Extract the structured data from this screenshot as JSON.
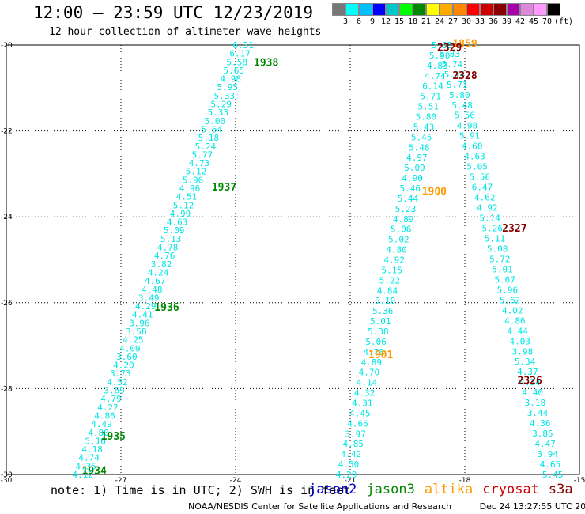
{
  "title": "12:00 – 23:59 UTC 12/23/2019",
  "subtitle": "12 hour collection of altimeter wave heights",
  "scale": {
    "unit": "(ft)",
    "colors": [
      "#777777",
      "#00ffff",
      "#00bfff",
      "#0000ff",
      "#00c8c8",
      "#00ff00",
      "#008800",
      "#ffff00",
      "#ffaa00",
      "#ff8800",
      "#ff0000",
      "#cc0000",
      "#880000",
      "#aa00aa",
      "#dd88dd",
      "#ff99ff",
      "#000000"
    ],
    "labels": [
      "3",
      "6",
      "9",
      "12",
      "15",
      "18",
      "21",
      "24",
      "27",
      "30",
      "33",
      "36",
      "39",
      "42",
      "45",
      "70"
    ]
  },
  "note": "note: 1) Time is in UTC; 2) SWH is in feet",
  "legend": [
    {
      "name": "jason2",
      "color": "#0000cc"
    },
    {
      "name": "jason3",
      "color": "#008800"
    },
    {
      "name": "altika",
      "color": "#ff9900"
    },
    {
      "name": "cryosat",
      "color": "#cc0000"
    },
    {
      "name": "s3a",
      "color": "#880000"
    }
  ],
  "footer": {
    "credit": "NOAA/NESDIS Center for Satellite Applications and Research",
    "timestamp": "Dec 24 13:27:55 UTC 2019"
  },
  "chart_data": {
    "type": "scatter",
    "xlim": [
      -30,
      -15
    ],
    "ylim": [
      -30,
      -20
    ],
    "x_ticks": [
      -30,
      -27,
      -24,
      -21,
      -18,
      -15
    ],
    "y_ticks": [
      -30,
      -28,
      -26,
      -24,
      -22,
      -20
    ],
    "grid": true,
    "point_color": "#00e5e5",
    "time_labels": [
      {
        "text": "1938",
        "x": -23.2,
        "y": -20.4,
        "color": "#008800"
      },
      {
        "text": "1937",
        "x": -24.3,
        "y": -23.3,
        "color": "#008800"
      },
      {
        "text": "1936",
        "x": -25.8,
        "y": -26.1,
        "color": "#008800"
      },
      {
        "text": "1935",
        "x": -27.2,
        "y": -29.1,
        "color": "#008800"
      },
      {
        "text": "1934",
        "x": -27.7,
        "y": -29.9,
        "color": "#008800"
      },
      {
        "text": "1900",
        "x": -18.8,
        "y": -23.4,
        "color": "#ff9900"
      },
      {
        "text": "1901",
        "x": -20.2,
        "y": -27.2,
        "color": "#ff9900"
      },
      {
        "text": "1859",
        "x": -18.0,
        "y": -19.95,
        "color": "#ff9900"
      },
      {
        "text": "2329",
        "x": -18.4,
        "y": -20.05,
        "color": "#880000"
      },
      {
        "text": "2328",
        "x": -18.0,
        "y": -20.7,
        "color": "#880000"
      },
      {
        "text": "2327",
        "x": -16.7,
        "y": -24.25,
        "color": "#880000"
      },
      {
        "text": "2326",
        "x": -16.3,
        "y": -27.8,
        "color": "#880000"
      }
    ],
    "series": [
      {
        "satellite": "jason3",
        "x_start": -23.8,
        "y_start": -20.0,
        "x_end": -28.0,
        "y_end": -30.0,
        "values": [
          6.31,
          6.17,
          5.58,
          5.65,
          4.98,
          5.95,
          5.33,
          5.29,
          5.33,
          5.0,
          5.64,
          5.18,
          5.24,
          5.77,
          4.73,
          5.12,
          5.96,
          4.96,
          4.51,
          5.12,
          4.99,
          4.63,
          5.09,
          5.13,
          4.78,
          4.76,
          3.82,
          4.24,
          4.67,
          4.48,
          3.49,
          4.29,
          4.41,
          3.96,
          3.58,
          4.25,
          4.09,
          3.6,
          4.2,
          3.73,
          4.52,
          3.69,
          4.79,
          4.22,
          4.86,
          4.49,
          4.8,
          5.16,
          4.18,
          4.74,
          4.35,
          4.12
        ]
      },
      {
        "satellite": "altika",
        "x_start": -18.6,
        "y_start": -20.0,
        "x_end": -21.1,
        "y_end": -30.0,
        "values": [
          5.85,
          5.9,
          4.83,
          4.74,
          6.14,
          5.71,
          5.51,
          5.8,
          5.43,
          5.45,
          5.48,
          4.97,
          5.09,
          4.9,
          5.46,
          5.44,
          5.23,
          4.89,
          5.06,
          5.02,
          4.8,
          4.92,
          5.15,
          5.22,
          4.84,
          5.1,
          5.36,
          5.01,
          5.38,
          5.06,
          4.78,
          4.89,
          4.7,
          4.14,
          4.32,
          4.31,
          4.45,
          4.66,
          3.97,
          4.85,
          4.42,
          4.5,
          4.29
        ]
      },
      {
        "satellite": "cryosat",
        "x_start": -18.4,
        "y_start": -20.2,
        "x_end": -15.7,
        "y_end": -30.0,
        "values": [
          5.83,
          5.74,
          5.14,
          5.71,
          5.8,
          5.48,
          5.56,
          4.98,
          5.91,
          4.6,
          4.63,
          5.05,
          5.56,
          6.47,
          4.62,
          4.92,
          5.14,
          5.26,
          5.11,
          5.08,
          5.72,
          5.01,
          5.67,
          5.96,
          5.62,
          4.02,
          4.86,
          4.44,
          4.03,
          3.98,
          5.34,
          4.37,
          4.34,
          4.4,
          3.18,
          3.44,
          4.36,
          3.85,
          4.47,
          3.94,
          4.65,
          5.45
        ]
      }
    ]
  }
}
